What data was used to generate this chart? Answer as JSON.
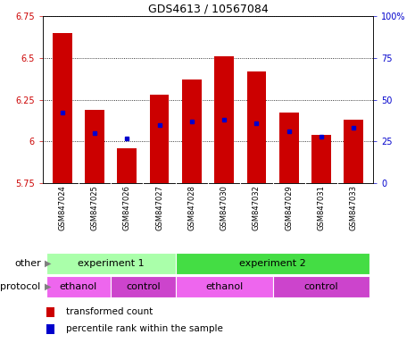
{
  "title": "GDS4613 / 10567084",
  "samples": [
    "GSM847024",
    "GSM847025",
    "GSM847026",
    "GSM847027",
    "GSM847028",
    "GSM847030",
    "GSM847032",
    "GSM847029",
    "GSM847031",
    "GSM847033"
  ],
  "bar_tops": [
    6.65,
    6.19,
    5.96,
    6.28,
    6.37,
    6.51,
    6.42,
    6.17,
    6.04,
    6.13
  ],
  "bar_bottom": 5.75,
  "percentile_pct": [
    42,
    30,
    27,
    35,
    37,
    38,
    36,
    31,
    28,
    33
  ],
  "ylim_left": [
    5.75,
    6.75
  ],
  "ylim_right": [
    0,
    100
  ],
  "yticks_left": [
    5.75,
    6.0,
    6.25,
    6.5,
    6.75
  ],
  "yticks_right": [
    0,
    25,
    50,
    75,
    100
  ],
  "ytick_labels_left": [
    "5.75",
    "6",
    "6.25",
    "6.5",
    "6.75"
  ],
  "ytick_labels_right": [
    "0",
    "25",
    "50",
    "75",
    "100%"
  ],
  "bar_color": "#cc0000",
  "percentile_color": "#0000cc",
  "tick_area_bg": "#c8c8c8",
  "experiment1_color": "#aaffaa",
  "experiment2_color": "#44dd44",
  "ethanol_color": "#ee66ee",
  "control_color": "#cc44cc",
  "other_label": "other",
  "protocol_label": "protocol",
  "exp1_label": "experiment 1",
  "exp2_label": "experiment 2",
  "ethanol_label": "ethanol",
  "control_label": "control",
  "legend1": "transformed count",
  "legend2": "percentile rank within the sample",
  "exp1_samples": [
    0,
    1,
    2,
    3
  ],
  "exp2_samples": [
    4,
    5,
    6,
    7,
    8,
    9
  ],
  "ethanol1_samples": [
    0,
    1
  ],
  "control1_samples": [
    2,
    3
  ],
  "ethanol2_samples": [
    4,
    5,
    6
  ],
  "control2_samples": [
    7,
    8,
    9
  ]
}
